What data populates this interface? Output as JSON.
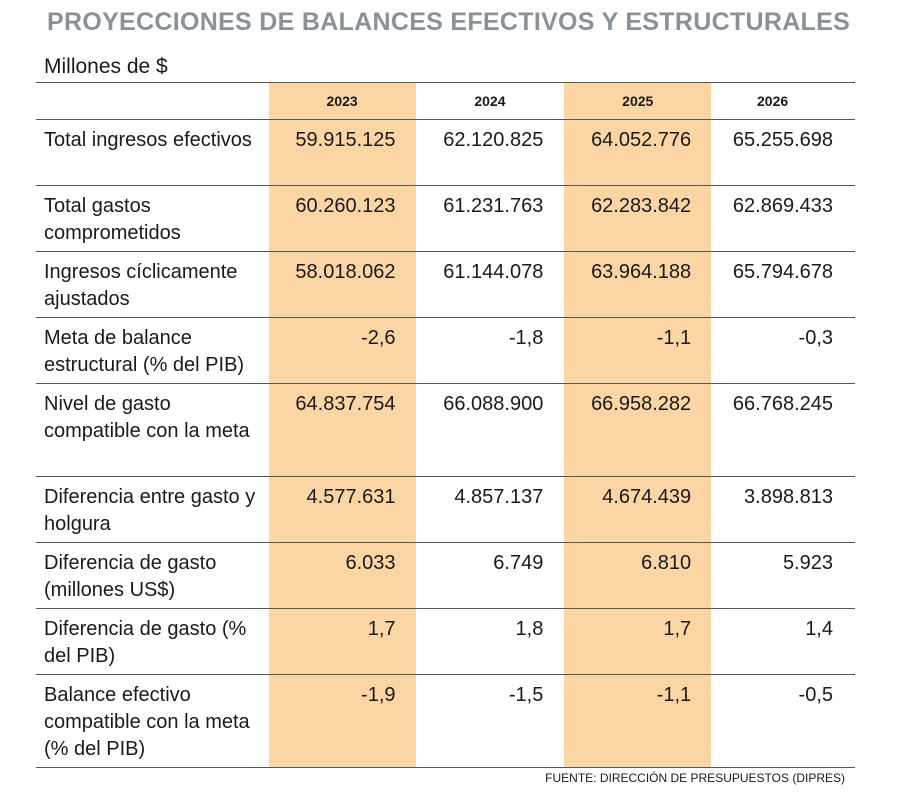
{
  "title": "PROYECCIONES DE BALANCES EFECTIVOS Y ESTRUCTURALES",
  "units": "Millones de $",
  "years": [
    "2023",
    "2024",
    "2025",
    "2026"
  ],
  "rows": [
    {
      "label": "Total ingresos efectivos",
      "values": [
        "59.915.125",
        "62.120.825",
        "64.052.776",
        "65.255.698"
      ]
    },
    {
      "label": "Total gastos comprometidos",
      "values": [
        "60.260.123",
        "61.231.763",
        "62.283.842",
        "62.869.433"
      ]
    },
    {
      "label": "Ingresos cíclicamente ajustados",
      "values": [
        "58.018.062",
        "61.144.078",
        "63.964.188",
        "65.794.678"
      ]
    },
    {
      "label": "Meta de balance estructural (% del PIB)",
      "values": [
        "-2,6",
        "-1,8",
        "-1,1",
        "-0,3"
      ]
    },
    {
      "label": "Nivel de gasto compatible con la meta",
      "values": [
        "64.837.754",
        "66.088.900",
        "66.958.282",
        "66.768.245"
      ]
    },
    {
      "label": "Diferencia entre gasto y holgura",
      "values": [
        "4.577.631",
        "4.857.137",
        "4.674.439",
        "3.898.813"
      ]
    },
    {
      "label": "Diferencia de gasto (millones US$)",
      "values": [
        "6.033",
        "6.749",
        "6.810",
        "5.923"
      ]
    },
    {
      "label": "Diferencia de gasto (% del PIB)",
      "values": [
        "1,7",
        "1,8",
        "1,7",
        "1,4"
      ]
    },
    {
      "label": "Balance efectivo compatible con la meta (% del PIB)",
      "values": [
        "-1,9",
        "-1,5",
        "-1,1",
        "-0,5"
      ]
    }
  ],
  "highlight_columns": [
    "2023",
    "2025"
  ],
  "highlight_color": "#fcd5a4",
  "title_color": "#8a9299",
  "source": "FUENTE: DIRECCIÓN DE PRESUPUESTOS (DIPRES)"
}
